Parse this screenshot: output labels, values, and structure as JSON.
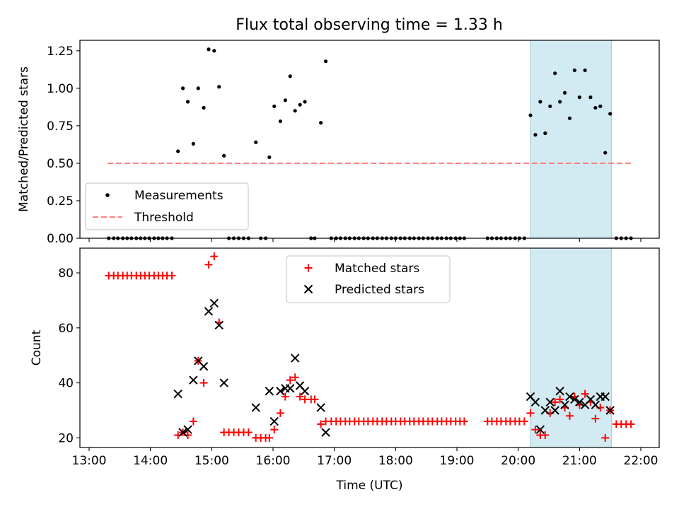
{
  "figure": {
    "title": "Flux total observing time = 1.33 h",
    "xlabel": "Time (UTC)",
    "shade_color": "#add8e6",
    "x_ticks": [
      {
        "t": 13.0,
        "label": "13:00"
      },
      {
        "t": 14.0,
        "label": "14:00"
      },
      {
        "t": 15.0,
        "label": "15:00"
      },
      {
        "t": 16.0,
        "label": "16:00"
      },
      {
        "t": 17.0,
        "label": "17:00"
      },
      {
        "t": 18.0,
        "label": "18:00"
      },
      {
        "t": 19.0,
        "label": "19:00"
      },
      {
        "t": 20.0,
        "label": "20:00"
      },
      {
        "t": 21.0,
        "label": "21:00"
      },
      {
        "t": 22.0,
        "label": "22:00"
      }
    ],
    "x_range": [
      12.85,
      22.3
    ],
    "shaded_span": [
      20.2,
      21.52
    ]
  },
  "chart_data": [
    {
      "type": "scatter",
      "ylabel": "Matched/Predicted stars",
      "ylim": [
        0,
        1.32
      ],
      "y_ticks": [
        {
          "v": 0.0,
          "label": "0.00"
        },
        {
          "v": 0.25,
          "label": "0.25"
        },
        {
          "v": 0.5,
          "label": "0.50"
        },
        {
          "v": 0.75,
          "label": "0.75"
        },
        {
          "v": 1.0,
          "label": "1.00"
        },
        {
          "v": 1.25,
          "label": "1.25"
        }
      ],
      "legend": [
        {
          "label": "Measurements",
          "marker": "dot",
          "color": "#000000"
        },
        {
          "label": "Threshold",
          "marker": "dashed-line",
          "color": "#ff7f7f"
        }
      ],
      "threshold": {
        "value": 0.5,
        "x": [
          13.3,
          21.85
        ]
      },
      "series": [
        {
          "name": "Measurements",
          "points": [
            [
              13.32,
              0
            ],
            [
              13.4,
              0
            ],
            [
              13.47,
              0
            ],
            [
              13.55,
              0
            ],
            [
              13.62,
              0
            ],
            [
              13.69,
              0
            ],
            [
              13.77,
              0
            ],
            [
              13.84,
              0
            ],
            [
              13.91,
              0
            ],
            [
              13.98,
              0
            ],
            [
              14.06,
              0
            ],
            [
              14.13,
              0
            ],
            [
              14.2,
              0
            ],
            [
              14.27,
              0
            ],
            [
              14.35,
              0
            ],
            [
              14.45,
              0.58
            ],
            [
              14.53,
              1.0
            ],
            [
              14.61,
              0.91
            ],
            [
              14.7,
              0.63
            ],
            [
              14.78,
              1.0
            ],
            [
              14.87,
              0.87
            ],
            [
              14.95,
              1.26
            ],
            [
              15.04,
              1.25
            ],
            [
              15.12,
              1.01
            ],
            [
              15.2,
              0.55
            ],
            [
              15.28,
              0
            ],
            [
              15.36,
              0
            ],
            [
              15.44,
              0
            ],
            [
              15.52,
              0
            ],
            [
              15.6,
              0
            ],
            [
              15.72,
              0.64
            ],
            [
              15.8,
              0
            ],
            [
              15.88,
              0
            ],
            [
              15.94,
              0.54
            ],
            [
              16.02,
              0.88
            ],
            [
              16.12,
              0.78
            ],
            [
              16.2,
              0.92
            ],
            [
              16.28,
              1.08
            ],
            [
              16.36,
              0.85
            ],
            [
              16.44,
              0.89
            ],
            [
              16.52,
              0.91
            ],
            [
              16.62,
              0
            ],
            [
              16.68,
              0
            ],
            [
              16.78,
              0.77
            ],
            [
              16.86,
              1.18
            ],
            [
              16.95,
              0
            ],
            [
              17.03,
              0
            ],
            [
              17.1,
              0
            ],
            [
              17.18,
              0
            ],
            [
              17.25,
              0
            ],
            [
              17.33,
              0
            ],
            [
              17.4,
              0
            ],
            [
              17.48,
              0
            ],
            [
              17.55,
              0
            ],
            [
              17.63,
              0
            ],
            [
              17.7,
              0
            ],
            [
              17.78,
              0
            ],
            [
              17.85,
              0
            ],
            [
              17.93,
              0
            ],
            [
              18.0,
              0
            ],
            [
              18.08,
              0
            ],
            [
              18.15,
              0
            ],
            [
              18.23,
              0
            ],
            [
              18.3,
              0
            ],
            [
              18.38,
              0
            ],
            [
              18.45,
              0
            ],
            [
              18.53,
              0
            ],
            [
              18.6,
              0
            ],
            [
              18.68,
              0
            ],
            [
              18.75,
              0
            ],
            [
              18.83,
              0
            ],
            [
              18.9,
              0
            ],
            [
              18.98,
              0
            ],
            [
              19.05,
              0
            ],
            [
              19.12,
              0
            ],
            [
              19.5,
              0
            ],
            [
              19.57,
              0
            ],
            [
              19.65,
              0
            ],
            [
              19.72,
              0
            ],
            [
              19.8,
              0
            ],
            [
              19.87,
              0
            ],
            [
              19.95,
              0
            ],
            [
              20.02,
              0
            ],
            [
              20.1,
              0
            ],
            [
              20.2,
              0.82
            ],
            [
              20.28,
              0.69
            ],
            [
              20.36,
              0.91
            ],
            [
              20.44,
              0.7
            ],
            [
              20.52,
              0.88
            ],
            [
              20.6,
              1.1
            ],
            [
              20.68,
              0.91
            ],
            [
              20.76,
              0.97
            ],
            [
              20.84,
              0.8
            ],
            [
              20.92,
              1.12
            ],
            [
              21.0,
              0.94
            ],
            [
              21.09,
              1.12
            ],
            [
              21.18,
              0.94
            ],
            [
              21.26,
              0.87
            ],
            [
              21.34,
              0.88
            ],
            [
              21.42,
              0.57
            ],
            [
              21.5,
              0.83
            ],
            [
              21.6,
              0
            ],
            [
              21.68,
              0
            ],
            [
              21.76,
              0
            ],
            [
              21.84,
              0
            ]
          ]
        }
      ]
    },
    {
      "type": "scatter",
      "ylabel": "Count",
      "ylim": [
        16.5,
        89
      ],
      "y_ticks": [
        {
          "v": 20,
          "label": "20"
        },
        {
          "v": 40,
          "label": "40"
        },
        {
          "v": 60,
          "label": "60"
        },
        {
          "v": 80,
          "label": "80"
        }
      ],
      "legend": [
        {
          "label": "Matched stars",
          "marker": "plus",
          "color": "#ff0000"
        },
        {
          "label": "Predicted stars",
          "marker": "x",
          "color": "#000000"
        }
      ],
      "series": [
        {
          "name": "Matched stars",
          "points": [
            [
              13.32,
              79
            ],
            [
              13.4,
              79
            ],
            [
              13.47,
              79
            ],
            [
              13.55,
              79
            ],
            [
              13.62,
              79
            ],
            [
              13.69,
              79
            ],
            [
              13.77,
              79
            ],
            [
              13.84,
              79
            ],
            [
              13.91,
              79
            ],
            [
              13.98,
              79
            ],
            [
              14.06,
              79
            ],
            [
              14.13,
              79
            ],
            [
              14.2,
              79
            ],
            [
              14.27,
              79
            ],
            [
              14.35,
              79
            ],
            [
              14.45,
              21
            ],
            [
              14.53,
              22
            ],
            [
              14.61,
              21
            ],
            [
              14.7,
              26
            ],
            [
              14.78,
              48
            ],
            [
              14.87,
              40
            ],
            [
              14.95,
              83
            ],
            [
              15.04,
              86
            ],
            [
              15.12,
              62
            ],
            [
              15.2,
              22
            ],
            [
              15.28,
              22
            ],
            [
              15.36,
              22
            ],
            [
              15.44,
              22
            ],
            [
              15.52,
              22
            ],
            [
              15.6,
              22
            ],
            [
              15.72,
              20
            ],
            [
              15.8,
              20
            ],
            [
              15.88,
              20
            ],
            [
              15.94,
              20
            ],
            [
              16.02,
              23
            ],
            [
              16.12,
              29
            ],
            [
              16.2,
              35
            ],
            [
              16.28,
              41
            ],
            [
              16.36,
              42
            ],
            [
              16.44,
              35
            ],
            [
              16.52,
              34
            ],
            [
              16.62,
              34
            ],
            [
              16.68,
              34
            ],
            [
              16.78,
              25
            ],
            [
              16.86,
              26
            ],
            [
              16.95,
              26
            ],
            [
              17.03,
              26
            ],
            [
              17.1,
              26
            ],
            [
              17.18,
              26
            ],
            [
              17.25,
              26
            ],
            [
              17.33,
              26
            ],
            [
              17.4,
              26
            ],
            [
              17.48,
              26
            ],
            [
              17.55,
              26
            ],
            [
              17.63,
              26
            ],
            [
              17.7,
              26
            ],
            [
              17.78,
              26
            ],
            [
              17.85,
              26
            ],
            [
              17.93,
              26
            ],
            [
              18.0,
              26
            ],
            [
              18.08,
              26
            ],
            [
              18.15,
              26
            ],
            [
              18.23,
              26
            ],
            [
              18.3,
              26
            ],
            [
              18.38,
              26
            ],
            [
              18.45,
              26
            ],
            [
              18.53,
              26
            ],
            [
              18.6,
              26
            ],
            [
              18.68,
              26
            ],
            [
              18.75,
              26
            ],
            [
              18.83,
              26
            ],
            [
              18.9,
              26
            ],
            [
              18.98,
              26
            ],
            [
              19.05,
              26
            ],
            [
              19.12,
              26
            ],
            [
              19.5,
              26
            ],
            [
              19.57,
              26
            ],
            [
              19.65,
              26
            ],
            [
              19.72,
              26
            ],
            [
              19.8,
              26
            ],
            [
              19.87,
              26
            ],
            [
              19.95,
              26
            ],
            [
              20.02,
              26
            ],
            [
              20.1,
              26
            ],
            [
              20.2,
              29
            ],
            [
              20.28,
              23
            ],
            [
              20.36,
              21
            ],
            [
              20.44,
              21
            ],
            [
              20.52,
              29
            ],
            [
              20.6,
              33
            ],
            [
              20.68,
              34
            ],
            [
              20.76,
              31
            ],
            [
              20.84,
              28
            ],
            [
              20.92,
              35
            ],
            [
              21.0,
              32
            ],
            [
              21.09,
              36
            ],
            [
              21.18,
              33
            ],
            [
              21.26,
              27
            ],
            [
              21.34,
              31
            ],
            [
              21.42,
              20
            ],
            [
              21.5,
              30
            ],
            [
              21.6,
              25
            ],
            [
              21.68,
              25
            ],
            [
              21.76,
              25
            ],
            [
              21.84,
              25
            ]
          ]
        },
        {
          "name": "Predicted stars",
          "points": [
            [
              14.45,
              36
            ],
            [
              14.53,
              22
            ],
            [
              14.61,
              23
            ],
            [
              14.7,
              41
            ],
            [
              14.78,
              48
            ],
            [
              14.87,
              46
            ],
            [
              14.95,
              66
            ],
            [
              15.04,
              69
            ],
            [
              15.12,
              61
            ],
            [
              15.2,
              40
            ],
            [
              15.72,
              31
            ],
            [
              15.94,
              37
            ],
            [
              16.02,
              26
            ],
            [
              16.12,
              37
            ],
            [
              16.2,
              38
            ],
            [
              16.28,
              38
            ],
            [
              16.36,
              49
            ],
            [
              16.44,
              39
            ],
            [
              16.52,
              37
            ],
            [
              16.78,
              31
            ],
            [
              16.86,
              22
            ],
            [
              20.2,
              35
            ],
            [
              20.28,
              33
            ],
            [
              20.36,
              23
            ],
            [
              20.44,
              30
            ],
            [
              20.52,
              33
            ],
            [
              20.6,
              30
            ],
            [
              20.68,
              37
            ],
            [
              20.76,
              32
            ],
            [
              20.84,
              35
            ],
            [
              20.92,
              34
            ],
            [
              21.0,
              33
            ],
            [
              21.09,
              32
            ],
            [
              21.18,
              34
            ],
            [
              21.26,
              32
            ],
            [
              21.34,
              35
            ],
            [
              21.42,
              35
            ],
            [
              21.5,
              30
            ]
          ]
        }
      ]
    }
  ]
}
